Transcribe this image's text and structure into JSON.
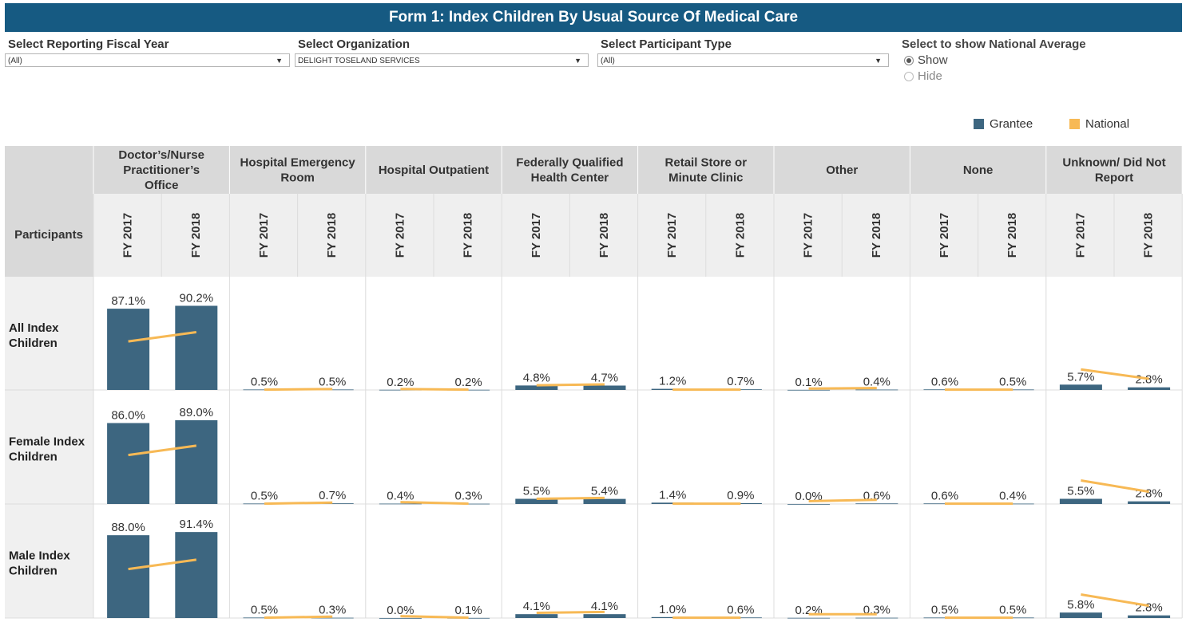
{
  "title": "Form 1: Index Children By Usual Source Of Medical Care",
  "filters": [
    {
      "label": "Select Reporting Fiscal Year",
      "value": "(All)"
    },
    {
      "label": "Select Organization",
      "value": "DELIGHT TOSELAND SERVICES"
    },
    {
      "label": "Select Participant Type",
      "value": "(All)"
    }
  ],
  "national_toggle": {
    "label": "Select to show National Average",
    "options": [
      "Show",
      "Hide"
    ],
    "selected": "Show"
  },
  "legend": [
    {
      "label": "Grantee",
      "color": "#3d6680"
    },
    {
      "label": "National",
      "color": "#f7b955"
    }
  ],
  "chart_data": {
    "type": "bar",
    "row_header": "Participants",
    "categories": [
      "Doctor’s/Nurse Practitioner’s Office",
      "Hospital Emergency Room",
      "Hospital Outpatient",
      "Federally Qualified Health Center",
      "Retail Store or Minute Clinic",
      "Other",
      "None",
      "Unknown/ Did Not Report"
    ],
    "years": [
      "FY 2017",
      "FY 2018"
    ],
    "rows": [
      {
        "name": "All Index Children",
        "grantee": [
          [
            87.1,
            90.2
          ],
          [
            0.5,
            0.5
          ],
          [
            0.2,
            0.2
          ],
          [
            4.8,
            4.7
          ],
          [
            1.2,
            0.7
          ],
          [
            0.1,
            0.4
          ],
          [
            0.6,
            0.5
          ],
          [
            5.7,
            2.8
          ]
        ],
        "grantee_labels": [
          [
            "87.1%",
            "90.2%"
          ],
          [
            "0.5%",
            "0.5%"
          ],
          [
            "0.2%",
            "0.2%"
          ],
          [
            "4.8%",
            "4.7%"
          ],
          [
            "1.2%",
            "0.7%"
          ],
          [
            "0.1%",
            "0.4%"
          ],
          [
            "0.6%",
            "0.5%"
          ],
          [
            "5.7%",
            "2.8%"
          ]
        ],
        "national": [
          [
            52.0,
            62.0
          ],
          [
            0.3,
            1.0
          ],
          [
            1.0,
            0.3
          ],
          [
            5.0,
            6.0
          ],
          [
            0.3,
            0.3
          ],
          [
            1.5,
            2.0
          ],
          [
            0.3,
            0.3
          ],
          [
            22.0,
            12.0
          ]
        ]
      },
      {
        "name": "Female Index Children",
        "grantee": [
          [
            86.0,
            89.0
          ],
          [
            0.5,
            0.7
          ],
          [
            0.4,
            0.3
          ],
          [
            5.5,
            5.4
          ],
          [
            1.4,
            0.9
          ],
          [
            0.0,
            0.6
          ],
          [
            0.6,
            0.4
          ],
          [
            5.5,
            2.8
          ]
        ],
        "grantee_labels": [
          [
            "86.0%",
            "89.0%"
          ],
          [
            "0.5%",
            "0.7%"
          ],
          [
            "0.4%",
            "0.3%"
          ],
          [
            "5.5%",
            "5.4%"
          ],
          [
            "1.4%",
            "0.9%"
          ],
          [
            "0.0%",
            "0.6%"
          ],
          [
            "0.6%",
            "0.4%"
          ],
          [
            "5.5%",
            "2.8%"
          ]
        ],
        "national": [
          [
            52.0,
            62.0
          ],
          [
            0.3,
            1.5
          ],
          [
            2.0,
            0.3
          ],
          [
            5.5,
            6.5
          ],
          [
            0.3,
            0.3
          ],
          [
            3.0,
            4.5
          ],
          [
            0.3,
            0.3
          ],
          [
            25.0,
            13.0
          ]
        ]
      },
      {
        "name": "Male Index Children",
        "grantee": [
          [
            88.0,
            91.4
          ],
          [
            0.5,
            0.3
          ],
          [
            0.0,
            0.1
          ],
          [
            4.1,
            4.1
          ],
          [
            1.0,
            0.6
          ],
          [
            0.2,
            0.3
          ],
          [
            0.5,
            0.5
          ],
          [
            5.8,
            2.8
          ]
        ],
        "grantee_labels": [
          [
            "88.0%",
            "91.4%"
          ],
          [
            "0.5%",
            "0.3%"
          ],
          [
            "0.0%",
            "0.1%"
          ],
          [
            "4.1%",
            "4.1%"
          ],
          [
            "1.0%",
            "0.6%"
          ],
          [
            "0.2%",
            "0.3%"
          ],
          [
            "0.5%",
            "0.5%"
          ],
          [
            "5.8%",
            "2.8%"
          ]
        ],
        "national": [
          [
            52.0,
            62.0
          ],
          [
            0.3,
            1.5
          ],
          [
            2.0,
            0.3
          ],
          [
            5.5,
            6.5
          ],
          [
            0.3,
            0.3
          ],
          [
            4.0,
            4.0
          ],
          [
            0.3,
            0.3
          ],
          [
            25.0,
            13.0
          ]
        ]
      }
    ],
    "ylim": [
      0,
      100
    ]
  }
}
